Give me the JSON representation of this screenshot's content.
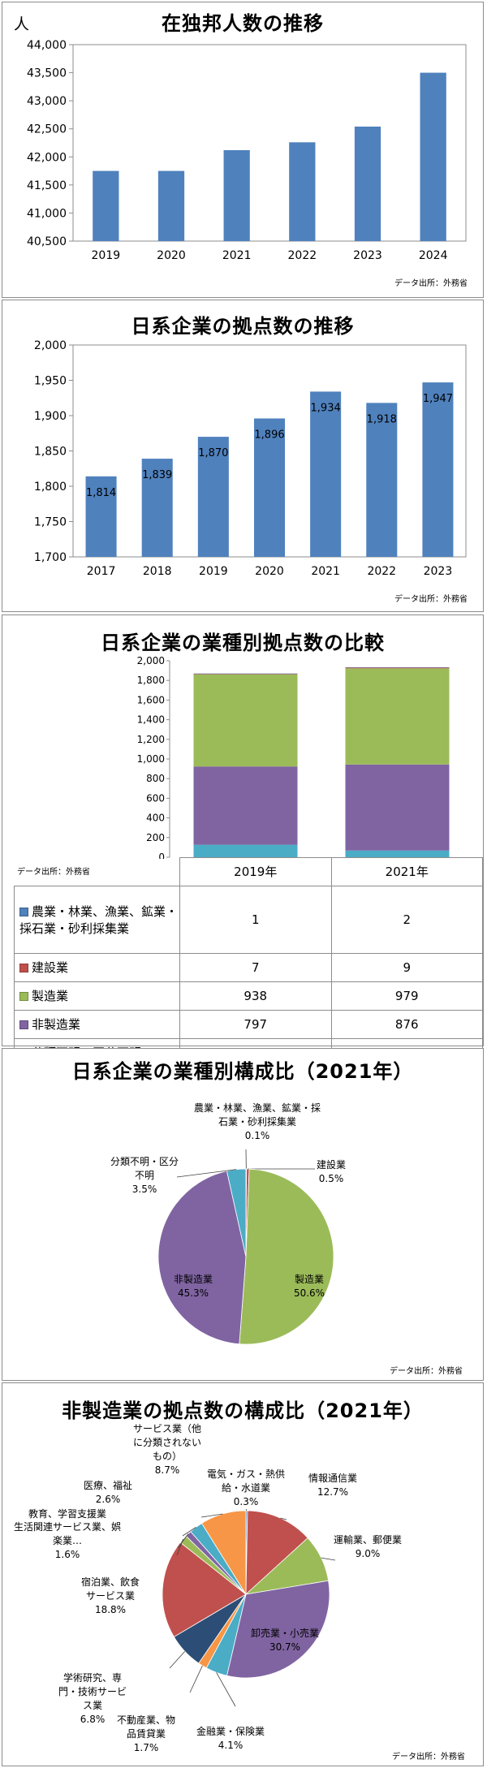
{
  "colors": {
    "bar_blue": "#4f81bd",
    "agriculture": "#4f81bd",
    "construction": "#c0504d",
    "manufacturing": "#9bbb59",
    "non_manufacturing": "#8064a2",
    "unknown": "#4bacc6",
    "services_other": "#f79646"
  },
  "source": "データ出所：外務省",
  "chart_data": [
    {
      "type": "bar",
      "title": "在独邦人数の推移",
      "ylabel": "人",
      "categories": [
        "2019",
        "2020",
        "2021",
        "2022",
        "2023",
        "2024"
      ],
      "values": [
        41750,
        41750,
        42120,
        42260,
        42540,
        43500
      ],
      "ylim": [
        40500,
        44000
      ],
      "yticks": [
        "40,500",
        "41,000",
        "41,500",
        "42,000",
        "42,500",
        "43,000",
        "43,500",
        "44,000"
      ],
      "grid": false,
      "source": "データ出所：外務省"
    },
    {
      "type": "bar",
      "title": "日系企業の拠点数の推移",
      "categories": [
        "2017",
        "2018",
        "2019",
        "2020",
        "2021",
        "2022",
        "2023"
      ],
      "values": [
        1814,
        1839,
        1870,
        1896,
        1934,
        1918,
        1947
      ],
      "data_labels": [
        "1,814",
        "1,839",
        "1,870",
        "1,896",
        "1,934",
        "1,918",
        "1,947"
      ],
      "ylim": [
        1700,
        2000
      ],
      "yticks": [
        "1,700",
        "1,750",
        "1,800",
        "1,850",
        "1,900",
        "1,950",
        "2,000"
      ],
      "grid": false,
      "source": "データ出所：外務省"
    },
    {
      "type": "bar",
      "stacked": true,
      "title": "日系企業の業種別拠点数の比較",
      "categories": [
        "2019年",
        "2021年"
      ],
      "series": [
        {
          "name": "農業・林業、漁業、鉱業・採石業・砂利採集業",
          "values": [
            1,
            2
          ],
          "color": "#4f81bd"
        },
        {
          "name": "建設業",
          "values": [
            7,
            9
          ],
          "color": "#c0504d"
        },
        {
          "name": "製造業",
          "values": [
            938,
            979
          ],
          "color": "#9bbb59"
        },
        {
          "name": "非製造業",
          "values": [
            797,
            876
          ],
          "color": "#8064a2"
        },
        {
          "name": "分類不明・区分不明",
          "values": [
            127,
            68
          ],
          "color": "#4bacc6"
        }
      ],
      "ylim": [
        0,
        2000
      ],
      "yticks": [
        "0",
        "200",
        "400",
        "600",
        "800",
        "1,000",
        "1,200",
        "1,400",
        "1,600",
        "1,800",
        "2,000"
      ],
      "legend": "data table below",
      "source": "データ出所：外務省"
    },
    {
      "type": "pie",
      "title": "日系企業の業種別構成比（2021年）",
      "slices": [
        {
          "name": "農業・林業、漁業、鉱業・採石業・砂利採集業",
          "value": 0.1,
          "label": "0.1%",
          "color": "#4f81bd"
        },
        {
          "name": "建設業",
          "value": 0.5,
          "label": "0.5%",
          "color": "#c0504d"
        },
        {
          "name": "製造業",
          "value": 50.6,
          "label": "50.6%",
          "color": "#9bbb59"
        },
        {
          "name": "非製造業",
          "value": 45.3,
          "label": "45.3%",
          "color": "#8064a2"
        },
        {
          "name": "分類不明・区分不明",
          "value": 3.5,
          "label": "3.5%",
          "color": "#4bacc6"
        }
      ],
      "source": "データ出所：外務省"
    },
    {
      "type": "pie",
      "title": "非製造業の拠点数の構成比（2021年）",
      "slices": [
        {
          "name": "電気・ガス・熱供給・水道業",
          "value": 0.3,
          "label": "0.3%",
          "color": "#4f81bd"
        },
        {
          "name": "情報通信業",
          "value": 12.7,
          "label": "12.7%",
          "color": "#c0504d"
        },
        {
          "name": "運輸業、郵便業",
          "value": 9.0,
          "label": "9.0%",
          "color": "#9bbb59"
        },
        {
          "name": "卸売業・小売業",
          "value": 30.7,
          "label": "30.7%",
          "color": "#8064a2"
        },
        {
          "name": "金融業・保険業",
          "value": 4.1,
          "label": "4.1%",
          "color": "#4bacc6"
        },
        {
          "name": "不動産業、物品賃貸業",
          "value": 1.7,
          "label": "1.7%",
          "color": "#f79646"
        },
        {
          "name": "学術研究、専門・技術サービス業",
          "value": 6.8,
          "label": "6.8%",
          "color": "#2c4d75"
        },
        {
          "name": "宿泊業、飲食サービス業",
          "value": 18.8,
          "label": "18.8%",
          "color": "#c0504d"
        },
        {
          "name": "生活関連サービス業、娯楽業…",
          "value": 1.6,
          "label": "1.6%",
          "color": "#9bbb59"
        },
        {
          "name": "教育、学習支援業",
          "value": 1.2,
          "label": "",
          "color": "#8064a2"
        },
        {
          "name": "医療、福祉",
          "value": 2.6,
          "label": "2.6%",
          "color": "#4bacc6"
        },
        {
          "name": "サービス業（他に分類されないもの）",
          "value": 8.7,
          "label": "8.7%",
          "color": "#f79646"
        }
      ],
      "source": "データ出所：外務省"
    }
  ]
}
